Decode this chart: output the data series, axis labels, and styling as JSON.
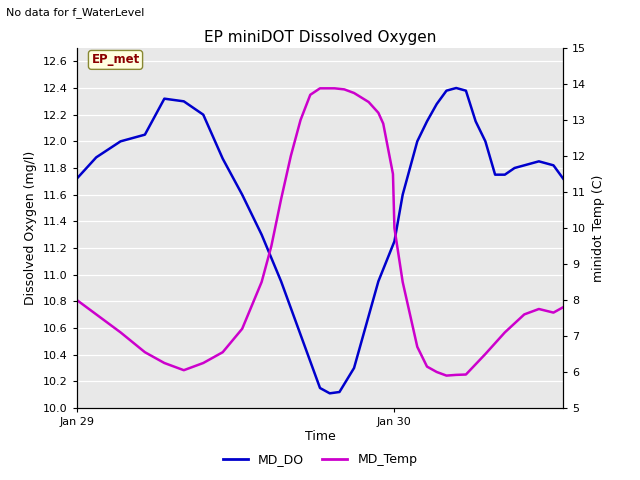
{
  "title": "EP miniDOT Dissolved Oxygen",
  "no_data_text": "No data for f_WaterLevel",
  "xlabel": "Time",
  "ylabel_left": "Dissolved Oxygen (mg/l)",
  "ylabel_right": "minidot Temp (C)",
  "ylim_left": [
    10.0,
    12.7
  ],
  "ylim_right": [
    5.0,
    15.0
  ],
  "yticks_left": [
    10.0,
    10.2,
    10.4,
    10.6,
    10.8,
    11.0,
    11.2,
    11.4,
    11.6,
    11.8,
    12.0,
    12.2,
    12.4,
    12.6
  ],
  "yticks_right": [
    5.0,
    6.0,
    7.0,
    8.0,
    9.0,
    10.0,
    11.0,
    12.0,
    13.0,
    14.0,
    15.0
  ],
  "xtick_positions": [
    0.0,
    0.653
  ],
  "xtick_labels": [
    "Jan 29",
    "Jan 30"
  ],
  "station_label": "EP_met",
  "bg_color": "#e8e8e8",
  "md_do_color": "#0000cc",
  "md_temp_color": "#cc00cc",
  "legend_labels": [
    "MD_DO",
    "MD_Temp"
  ],
  "md_do_x": [
    0.0,
    0.04,
    0.09,
    0.14,
    0.18,
    0.22,
    0.26,
    0.3,
    0.34,
    0.38,
    0.42,
    0.46,
    0.5,
    0.51,
    0.52,
    0.54,
    0.57,
    0.62,
    0.653,
    0.67,
    0.7,
    0.72,
    0.74,
    0.76,
    0.78,
    0.8,
    0.82,
    0.84,
    0.86,
    0.88,
    0.9,
    0.92,
    0.95,
    0.98,
    1.0
  ],
  "md_do_y": [
    11.72,
    11.88,
    12.0,
    12.05,
    12.32,
    12.3,
    12.2,
    11.87,
    11.6,
    11.3,
    10.95,
    10.55,
    10.15,
    10.13,
    10.11,
    10.12,
    10.3,
    10.95,
    11.25,
    11.6,
    12.0,
    12.15,
    12.28,
    12.38,
    12.4,
    12.38,
    12.15,
    12.0,
    11.75,
    11.75,
    11.8,
    11.82,
    11.85,
    11.82,
    11.72
  ],
  "md_temp_x": [
    0.0,
    0.04,
    0.09,
    0.14,
    0.18,
    0.22,
    0.26,
    0.3,
    0.34,
    0.38,
    0.4,
    0.42,
    0.44,
    0.46,
    0.48,
    0.5,
    0.53,
    0.55,
    0.57,
    0.6,
    0.62,
    0.63,
    0.65,
    0.653,
    0.67,
    0.7,
    0.72,
    0.74,
    0.76,
    0.78,
    0.8,
    0.84,
    0.88,
    0.92,
    0.95,
    0.98,
    1.0
  ],
  "md_temp_y": [
    8.0,
    7.6,
    7.1,
    6.55,
    6.25,
    6.05,
    6.25,
    6.55,
    7.2,
    8.5,
    9.5,
    10.8,
    12.0,
    13.0,
    13.7,
    13.88,
    13.88,
    13.85,
    13.75,
    13.5,
    13.2,
    12.9,
    11.5,
    10.0,
    8.5,
    6.7,
    6.15,
    6.0,
    5.9,
    5.92,
    5.93,
    6.5,
    7.1,
    7.6,
    7.75,
    7.65,
    7.8
  ],
  "xlim": [
    0.0,
    1.0
  ]
}
